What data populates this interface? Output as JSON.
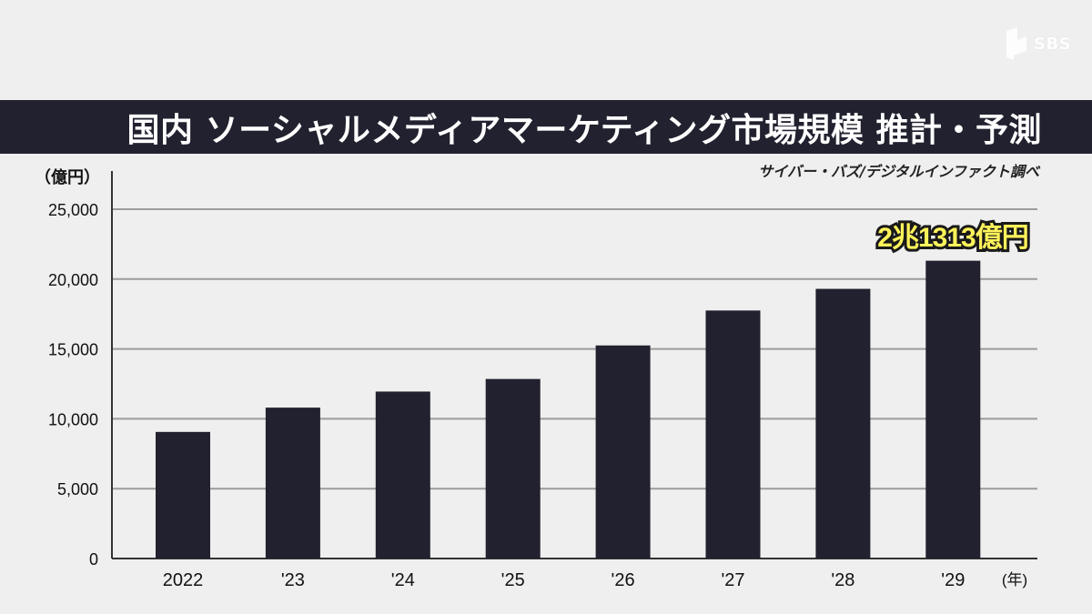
{
  "logo": {
    "text": "SBS"
  },
  "title": "国内 ソーシャルメディアマーケティング市場規模 推計・予測",
  "source": "サイバー・バズ/デジタルインファクト調べ",
  "callout": "2兆1313億円",
  "colors": {
    "bar": "#21212f",
    "title_bg": "#21212f",
    "background": "#efefef",
    "callout_fill": "#fff35a",
    "grid": "#9c9c9c"
  },
  "chart_data": {
    "type": "bar",
    "title": "国内 ソーシャルメディアマーケティング市場規模 推計・予測",
    "ylabel": "（億円）",
    "xlabel": "(年)",
    "ylim": [
      0,
      25000
    ],
    "yticks": [
      0,
      5000,
      10000,
      15000,
      20000,
      25000
    ],
    "ytick_labels": [
      "0",
      "5,000",
      "10,000",
      "15,000",
      "20,000",
      "25,000"
    ],
    "categories": [
      "2022",
      "'23",
      "'24",
      "'25",
      "'26",
      "'27",
      "'28",
      "'29"
    ],
    "values": [
      9060,
      10800,
      11950,
      12850,
      15250,
      17750,
      19300,
      21313
    ],
    "annotations": [
      {
        "category": "'29",
        "text": "2兆1313億円"
      }
    ],
    "grid": true
  }
}
